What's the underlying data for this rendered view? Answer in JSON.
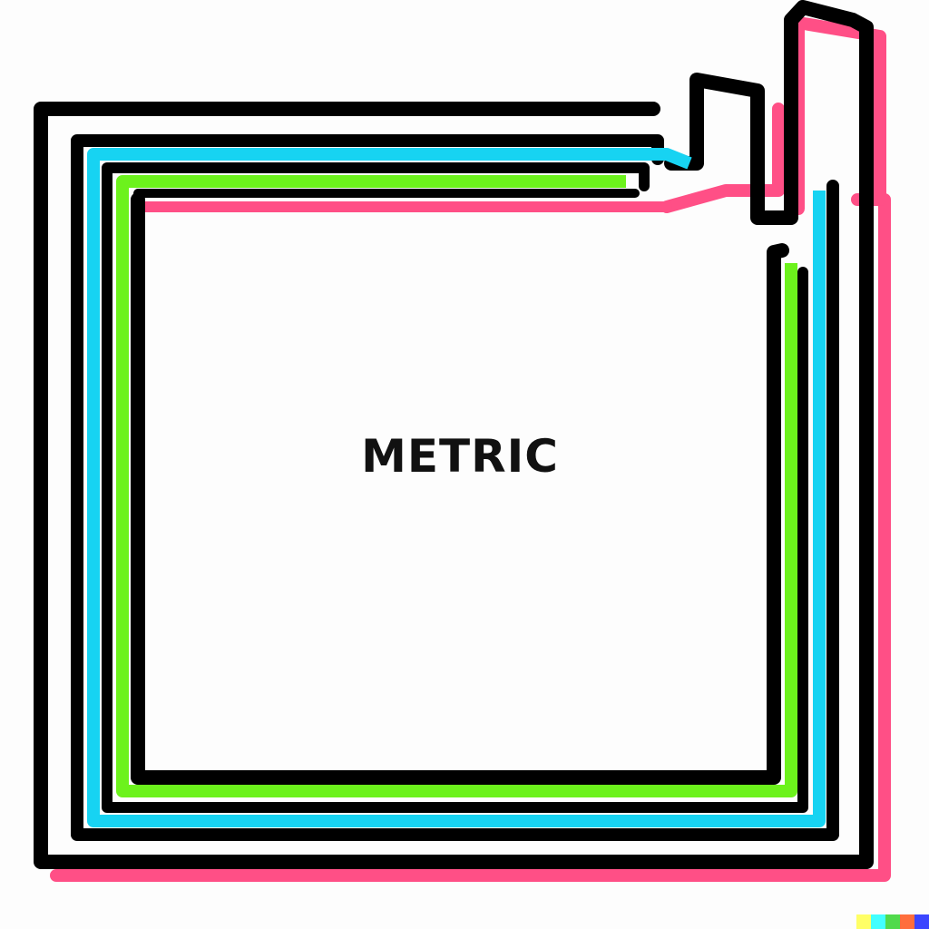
{
  "label": "METRIC",
  "colors": {
    "outline": "#000000",
    "pink": "#ff4f86",
    "cyan": "#17d3f2",
    "green": "#6cf21c",
    "background": "#ffffff"
  },
  "swatches": [
    {
      "name": "yellow",
      "color": "#ffff66"
    },
    {
      "name": "cyan",
      "color": "#42ffff"
    },
    {
      "name": "green",
      "color": "#51da4c"
    },
    {
      "name": "orange",
      "color": "#ff6e3c"
    },
    {
      "name": "blue",
      "color": "#3c46ff"
    }
  ]
}
